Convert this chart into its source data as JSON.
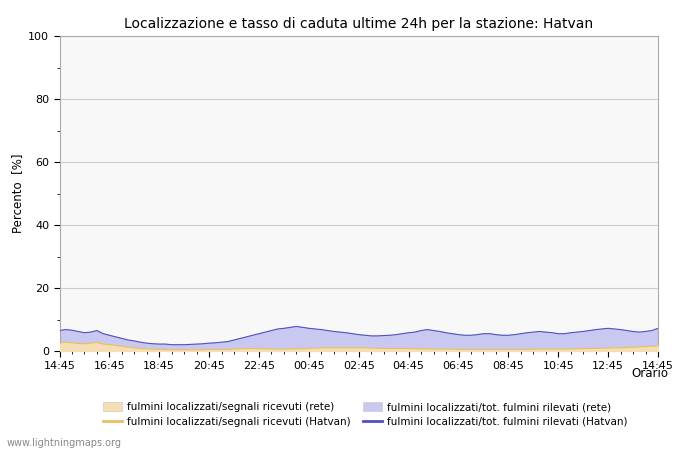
{
  "title": "Localizzazione e tasso di caduta ultime 24h per la stazione: Hatvan",
  "xlabel": "Orario",
  "ylabel": "Percento  [%]",
  "ylim": [
    0,
    100
  ],
  "yticks": [
    0,
    20,
    40,
    60,
    80,
    100
  ],
  "yticks_minor": [
    10,
    30,
    50,
    70,
    90
  ],
  "x_labels": [
    "14:45",
    "16:45",
    "18:45",
    "20:45",
    "22:45",
    "00:45",
    "02:45",
    "04:45",
    "06:45",
    "08:45",
    "10:45",
    "12:45",
    "14:45"
  ],
  "background_color": "#ffffff",
  "plot_bg_color": "#f8f8f8",
  "grid_color": "#cccccc",
  "fill_rete_color": "#f5deb3",
  "fill_hatvan_color": "#c8c8f0",
  "line_rete_color": "#e8c060",
  "line_hatvan_color": "#5050c0",
  "watermark": "www.lightningmaps.org",
  "legend_labels": [
    "fulmini localizzati/segnali ricevuti (rete)",
    "fulmini localizzati/segnali ricevuti (Hatvan)",
    "fulmini localizzati/tot. fulmini rilevati (rete)",
    "fulmini localizzati/tot. fulmini rilevati (Hatvan)"
  ],
  "n_points": 97,
  "fill_rete_data": [
    2.5,
    2.8,
    2.6,
    2.4,
    2.3,
    2.5,
    2.7,
    2.2,
    2.0,
    1.8,
    1.5,
    1.2,
    1.0,
    0.8,
    0.7,
    0.6,
    0.5,
    0.5,
    0.4,
    0.4,
    0.4,
    0.4,
    0.4,
    0.4,
    0.5,
    0.5,
    0.5,
    0.5,
    0.6,
    0.7,
    0.8,
    0.8,
    0.7,
    0.7,
    0.6,
    0.6,
    0.6,
    0.7,
    0.7,
    0.7,
    0.8,
    0.9,
    1.0,
    1.0,
    1.0,
    1.0,
    1.0,
    1.0,
    1.0,
    1.0,
    0.9,
    0.9,
    0.8,
    0.8,
    0.8,
    0.8,
    0.8,
    0.7,
    0.7,
    0.7,
    0.6,
    0.6,
    0.6,
    0.6,
    0.5,
    0.5,
    0.5,
    0.5,
    0.5,
    0.5,
    0.5,
    0.5,
    0.5,
    0.5,
    0.5,
    0.5,
    0.6,
    0.6,
    0.6,
    0.6,
    0.6,
    0.6,
    0.7,
    0.7,
    0.8,
    0.8,
    0.8,
    0.9,
    0.9,
    1.0,
    1.0,
    1.1,
    1.2,
    1.3,
    1.4,
    1.5,
    1.6
  ],
  "fill_hatvan_data": [
    6.5,
    6.8,
    6.6,
    6.2,
    5.8,
    6.0,
    6.5,
    5.5,
    5.0,
    4.5,
    4.0,
    3.5,
    3.2,
    2.8,
    2.5,
    2.3,
    2.2,
    2.2,
    2.0,
    2.0,
    2.0,
    2.1,
    2.2,
    2.3,
    2.5,
    2.6,
    2.8,
    3.0,
    3.5,
    4.0,
    4.5,
    5.0,
    5.5,
    6.0,
    6.5,
    7.0,
    7.2,
    7.5,
    7.8,
    7.5,
    7.2,
    7.0,
    6.8,
    6.5,
    6.2,
    6.0,
    5.8,
    5.5,
    5.2,
    5.0,
    4.8,
    4.8,
    4.9,
    5.0,
    5.2,
    5.5,
    5.8,
    6.0,
    6.5,
    6.8,
    6.5,
    6.2,
    5.8,
    5.5,
    5.2,
    5.0,
    5.0,
    5.2,
    5.5,
    5.5,
    5.2,
    5.0,
    5.0,
    5.2,
    5.5,
    5.8,
    6.0,
    6.2,
    6.0,
    5.8,
    5.5,
    5.5,
    5.8,
    6.0,
    6.2,
    6.5,
    6.8,
    7.0,
    7.2,
    7.0,
    6.8,
    6.5,
    6.2,
    6.0,
    6.2,
    6.5,
    7.2
  ]
}
